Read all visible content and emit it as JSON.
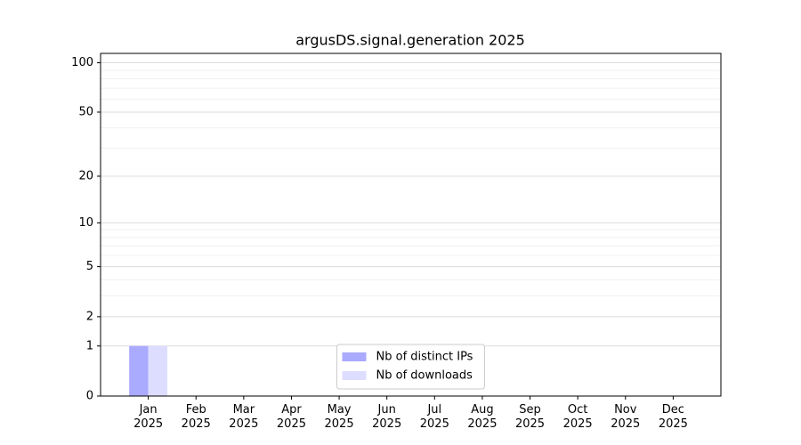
{
  "chart_data": {
    "type": "bar",
    "title": "argusDS.signal.generation 2025",
    "categories": [
      "Jan\n2025",
      "Feb\n2025",
      "Mar\n2025",
      "Apr\n2025",
      "May\n2025",
      "Jun\n2025",
      "Jul\n2025",
      "Aug\n2025",
      "Sep\n2025",
      "Oct\n2025",
      "Nov\n2025",
      "Dec\n2025"
    ],
    "series": [
      {
        "name": "Nb of distinct IPs",
        "color": "#aaaaff",
        "values": [
          1,
          0,
          0,
          0,
          0,
          0,
          0,
          0,
          0,
          0,
          0,
          0
        ]
      },
      {
        "name": "Nb of downloads",
        "color": "#ddddff",
        "values": [
          1,
          0,
          0,
          0,
          0,
          0,
          0,
          0,
          0,
          0,
          0,
          0
        ]
      }
    ],
    "yscale": "log1p",
    "ylim": [
      0,
      114
    ],
    "yticks": [
      0,
      1,
      2,
      5,
      10,
      20,
      50,
      100
    ],
    "minor_yticks": [
      3,
      4,
      6,
      7,
      8,
      9,
      30,
      40,
      60,
      70,
      80,
      90
    ],
    "grid": true,
    "legend": "lower center"
  }
}
